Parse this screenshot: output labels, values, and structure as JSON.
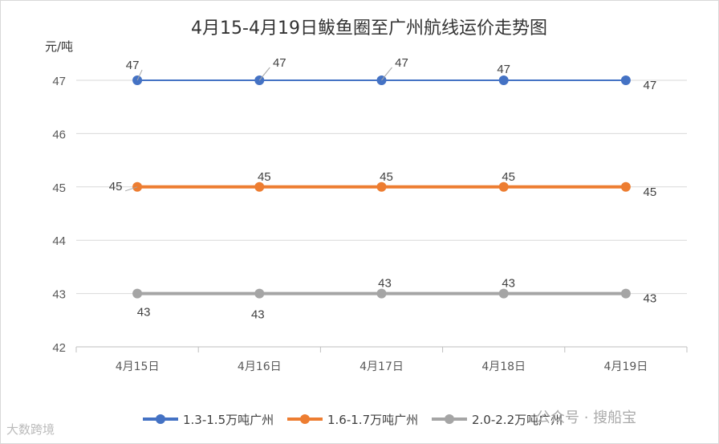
{
  "chart_data": {
    "type": "line",
    "title": "4月15-4月19日鲅鱼圈至广州航线运价走势图",
    "ylabel": "元/吨",
    "xlabel": "",
    "categories": [
      "4月15日",
      "4月16日",
      "4月17日",
      "4月18日",
      "4月19日"
    ],
    "ylim": [
      42,
      47
    ],
    "yticks": [
      42,
      43,
      44,
      45,
      46,
      47
    ],
    "grid": true,
    "legend": "bottom",
    "series": [
      {
        "name": "1.3-1.5万吨广州",
        "values": [
          47,
          47,
          47,
          47,
          47
        ],
        "color": "#4472c4"
      },
      {
        "name": "1.6-1.7万吨广州",
        "values": [
          45,
          45,
          45,
          45,
          45
        ],
        "color": "#ed7d31"
      },
      {
        "name": "2.0-2.2万吨广州",
        "values": [
          43,
          43,
          43,
          43,
          43
        ],
        "color": "#a5a5a5"
      }
    ]
  },
  "watermarks": {
    "left": "大数跨境",
    "right": "公众号 · 搜船宝"
  }
}
